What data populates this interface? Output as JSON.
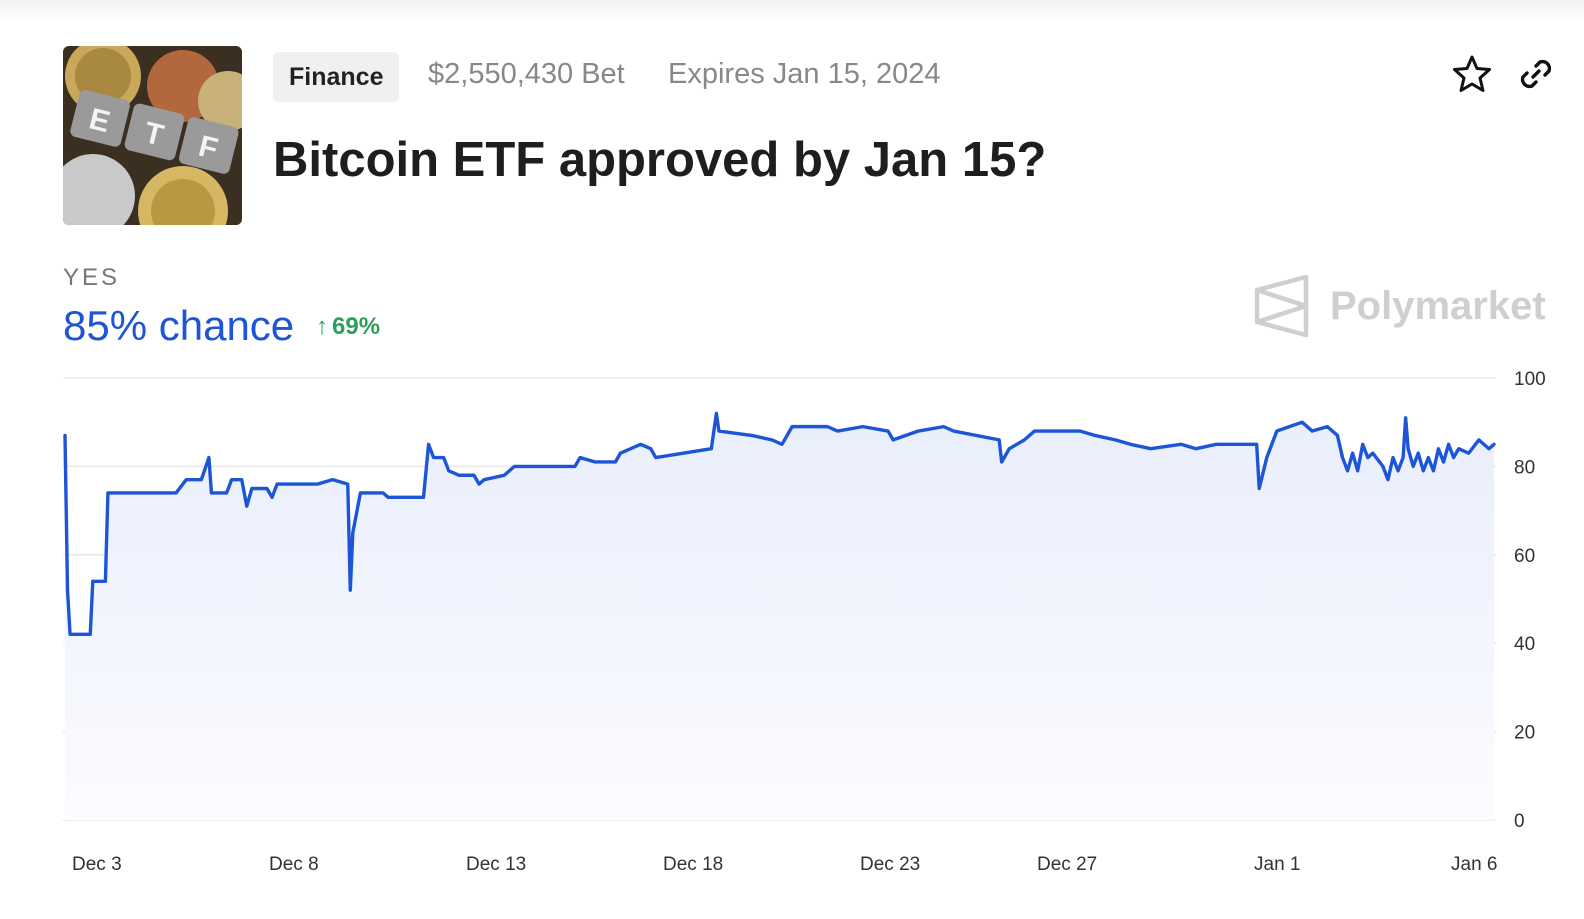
{
  "market": {
    "category": "Finance",
    "volume": "$2,550,430 Bet",
    "expires": "Expires Jan 15, 2024",
    "title": "Bitcoin ETF approved by Jan 15?",
    "outcome_label": "YES",
    "chance": "85% chance",
    "change": "69%",
    "brand": "Polymarket",
    "thumbnail_text": [
      "E",
      "T",
      "F"
    ]
  },
  "icons": {
    "favorite": "star-icon",
    "share": "link-icon",
    "change_arrow": "arrow-up-icon",
    "brand": "polymarket-logo-icon"
  },
  "colors": {
    "line": "#1d55d6",
    "positive": "#2aa15a",
    "brand_gray": "#cfcfcf"
  },
  "chart_data": {
    "type": "line",
    "x_labels": [
      "Dec 3",
      "Dec 8",
      "Dec 13",
      "Dec 18",
      "Dec 23",
      "Dec 27",
      "Jan 1",
      "Jan 6"
    ],
    "y_ticks": [
      0,
      20,
      40,
      60,
      80,
      100
    ],
    "ylim": [
      0,
      100
    ],
    "grid": true,
    "series": [
      {
        "values": [
          [
            0.0,
            87
          ],
          [
            0.05,
            52
          ],
          [
            0.1,
            42
          ],
          [
            0.5,
            42
          ],
          [
            0.55,
            54
          ],
          [
            0.8,
            54
          ],
          [
            0.85,
            74
          ],
          [
            1.5,
            74
          ],
          [
            2.2,
            74
          ],
          [
            2.4,
            77
          ],
          [
            2.7,
            77
          ],
          [
            2.85,
            82
          ],
          [
            2.9,
            74
          ],
          [
            3.2,
            74
          ],
          [
            3.3,
            77
          ],
          [
            3.5,
            77
          ],
          [
            3.6,
            71
          ],
          [
            3.7,
            75
          ],
          [
            4.0,
            75
          ],
          [
            4.1,
            73
          ],
          [
            4.2,
            76
          ],
          [
            5.0,
            76
          ],
          [
            5.3,
            77
          ],
          [
            5.6,
            76
          ],
          [
            5.65,
            52
          ],
          [
            5.7,
            65
          ],
          [
            5.85,
            74
          ],
          [
            6.3,
            74
          ],
          [
            6.4,
            73
          ],
          [
            7.1,
            73
          ],
          [
            7.2,
            85
          ],
          [
            7.3,
            82
          ],
          [
            7.5,
            82
          ],
          [
            7.6,
            79
          ],
          [
            7.8,
            78
          ],
          [
            8.1,
            78
          ],
          [
            8.2,
            76
          ],
          [
            8.3,
            77
          ],
          [
            8.7,
            78
          ],
          [
            8.9,
            80
          ],
          [
            9.6,
            80
          ],
          [
            10.1,
            80
          ],
          [
            10.2,
            82
          ],
          [
            10.5,
            81
          ],
          [
            10.9,
            81
          ],
          [
            11.0,
            83
          ],
          [
            11.4,
            85
          ],
          [
            11.6,
            84
          ],
          [
            11.7,
            82
          ],
          [
            12.8,
            84
          ],
          [
            12.85,
            88
          ],
          [
            12.9,
            92
          ],
          [
            12.95,
            88
          ],
          [
            13.6,
            87
          ],
          [
            14.0,
            86
          ],
          [
            14.2,
            85
          ],
          [
            14.4,
            89
          ],
          [
            15.1,
            89
          ],
          [
            15.3,
            88
          ],
          [
            15.8,
            89
          ],
          [
            16.3,
            88
          ],
          [
            16.4,
            86
          ],
          [
            16.9,
            88
          ],
          [
            17.4,
            89
          ],
          [
            17.6,
            88
          ],
          [
            18.5,
            86
          ],
          [
            18.55,
            81
          ],
          [
            18.7,
            84
          ],
          [
            19.0,
            86
          ],
          [
            19.2,
            88
          ],
          [
            20.1,
            88
          ],
          [
            20.4,
            87
          ],
          [
            20.8,
            86
          ],
          [
            21.1,
            85
          ],
          [
            21.5,
            84
          ],
          [
            22.1,
            85
          ],
          [
            22.4,
            84
          ],
          [
            22.8,
            85
          ],
          [
            23.6,
            85
          ],
          [
            23.65,
            75
          ],
          [
            23.8,
            82
          ],
          [
            24.0,
            88
          ],
          [
            24.5,
            90
          ],
          [
            24.7,
            88
          ],
          [
            25.0,
            89
          ],
          [
            25.2,
            87
          ],
          [
            25.3,
            82
          ],
          [
            25.4,
            79
          ],
          [
            25.5,
            83
          ],
          [
            25.6,
            79
          ],
          [
            25.7,
            85
          ],
          [
            25.8,
            82
          ],
          [
            25.9,
            83
          ],
          [
            26.1,
            80
          ],
          [
            26.2,
            77
          ],
          [
            26.3,
            82
          ],
          [
            26.4,
            79
          ],
          [
            26.5,
            82
          ],
          [
            26.55,
            91
          ],
          [
            26.6,
            84
          ],
          [
            26.7,
            80
          ],
          [
            26.8,
            83
          ],
          [
            26.9,
            79
          ],
          [
            27.0,
            82
          ],
          [
            27.1,
            79
          ],
          [
            27.2,
            84
          ],
          [
            27.3,
            81
          ],
          [
            27.4,
            85
          ],
          [
            27.5,
            82
          ],
          [
            27.6,
            84
          ],
          [
            27.8,
            83
          ],
          [
            28.0,
            86
          ],
          [
            28.2,
            84
          ],
          [
            28.3,
            85
          ]
        ]
      }
    ]
  }
}
